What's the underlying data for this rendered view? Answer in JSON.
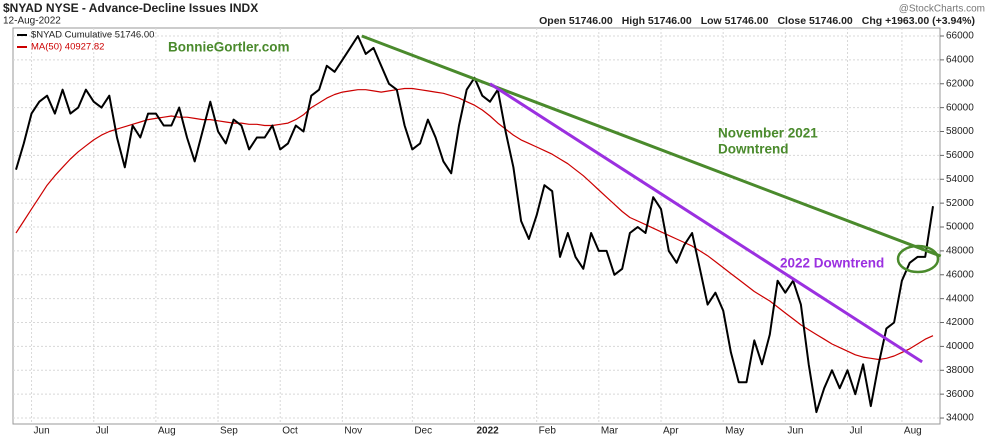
{
  "chart_data": {
    "type": "line",
    "title": "$NYAD NYSE - Advance-Decline Issues INDX",
    "date": "12-Aug-2022",
    "credit": "@StockCharts.com",
    "quote": [
      "Open 51746.00",
      "High 51746.00",
      "Low 51746.00",
      "Close 51746.00",
      "Chg +1963.00 (+3.94%)"
    ],
    "categories": [
      null,
      null,
      "Jun",
      null,
      null,
      null,
      null,
      null,
      null,
      null,
      "Jul",
      null,
      null,
      null,
      null,
      null,
      null,
      null,
      "Aug",
      null,
      null,
      null,
      null,
      null,
      null,
      null,
      "Sep",
      null,
      null,
      null,
      null,
      null,
      null,
      null,
      "Oct",
      null,
      null,
      null,
      null,
      null,
      null,
      null,
      "Nov",
      null,
      null,
      null,
      null,
      null,
      null,
      null,
      null,
      "Dec",
      null,
      null,
      null,
      null,
      null,
      null,
      null,
      "2022",
      null,
      null,
      null,
      null,
      null,
      null,
      null,
      "Feb",
      null,
      null,
      null,
      null,
      null,
      null,
      null,
      "Mar",
      null,
      null,
      null,
      null,
      null,
      null,
      null,
      "Apr",
      null,
      null,
      null,
      null,
      null,
      null,
      null,
      "May",
      null,
      null,
      null,
      null,
      null,
      null,
      null,
      "Jun",
      null,
      null,
      null,
      null,
      null,
      null,
      null,
      "Jul",
      null,
      null,
      null,
      null,
      null,
      null,
      "Aug",
      null,
      null,
      null,
      null
    ],
    "series": [
      {
        "name": "$NYAD Cumulative 51746.00",
        "color": "#000000",
        "values": [
          54800,
          57000,
          59500,
          60500,
          61000,
          59500,
          61500,
          59500,
          60000,
          61500,
          60500,
          60000,
          61000,
          57500,
          55000,
          58500,
          57500,
          59500,
          59500,
          58500,
          58500,
          60000,
          57500,
          55500,
          58000,
          60500,
          58000,
          57000,
          59000,
          58500,
          56500,
          57500,
          57500,
          58500,
          56500,
          57000,
          58500,
          58000,
          61000,
          61500,
          63500,
          63000,
          64000,
          65000,
          66000,
          64500,
          65000,
          63500,
          62000,
          61500,
          58500,
          56500,
          57000,
          59000,
          57500,
          55500,
          54500,
          58500,
          61500,
          62500,
          61000,
          60500,
          61500,
          58000,
          55000,
          50500,
          49000,
          51000,
          53500,
          53000,
          47500,
          49500,
          47500,
          46500,
          49500,
          48000,
          48000,
          46000,
          46500,
          49500,
          50000,
          49500,
          52500,
          51500,
          48000,
          47000,
          48500,
          49500,
          46500,
          43500,
          44500,
          43000,
          39500,
          37000,
          37000,
          40500,
          38500,
          41000,
          45500,
          44500,
          45500,
          43500,
          38500,
          34500,
          36500,
          38000,
          36500,
          38000,
          36000,
          38500,
          35000,
          38500,
          41500,
          42000,
          45500,
          47000,
          47500,
          47500,
          51746
        ]
      },
      {
        "name": "MA(50) 40927.82",
        "color": "#cc0000",
        "values": [
          49500,
          50500,
          51500,
          52500,
          53500,
          54300,
          55000,
          55700,
          56300,
          56800,
          57300,
          57700,
          58000,
          58200,
          58400,
          58600,
          58800,
          59000,
          59100,
          59200,
          59300,
          59200,
          59200,
          59100,
          59000,
          59000,
          58900,
          58800,
          58700,
          58700,
          58600,
          58600,
          58500,
          58500,
          58600,
          58700,
          59000,
          59400,
          60000,
          60400,
          60800,
          61100,
          61300,
          61400,
          61500,
          61500,
          61400,
          61300,
          61400,
          61500,
          61600,
          61600,
          61500,
          61400,
          61300,
          61200,
          61000,
          60800,
          60500,
          60200,
          59800,
          59300,
          58700,
          58200,
          57700,
          57300,
          57000,
          56700,
          56400,
          56100,
          55700,
          55300,
          54800,
          54300,
          53700,
          53100,
          52500,
          51900,
          51300,
          50800,
          50500,
          50200,
          49900,
          49600,
          49300,
          49000,
          48700,
          48400,
          48000,
          47600,
          47100,
          46600,
          46100,
          45600,
          45100,
          44600,
          44200,
          43800,
          43300,
          42800,
          42300,
          41800,
          41400,
          41000,
          40600,
          40200,
          39900,
          39600,
          39300,
          39100,
          39000,
          38900,
          39000,
          39200,
          39500,
          39800,
          40200,
          40600,
          40900
        ]
      }
    ],
    "trendlines": [
      {
        "label": [
          "November 2021",
          "Downtrend"
        ],
        "color": "#4a8a2c",
        "x": [
          44.5,
          119
        ],
        "y": [
          66000,
          47560
        ]
      },
      {
        "label": [
          "2022 Downtrend"
        ],
        "color": "#9b30e0",
        "x": [
          61,
          116.6
        ],
        "y": [
          62000,
          38700
        ]
      }
    ],
    "annotation": "BonnieGortler.com",
    "annotation_color": "#4a8a2c",
    "ylim": [
      33500,
      66670
    ],
    "yticks": [
      34000,
      36000,
      38000,
      40000,
      42000,
      44000,
      46000,
      48000,
      50000,
      52000,
      54000,
      56000,
      58000,
      60000,
      62000,
      64000,
      66000
    ],
    "grid": true
  }
}
